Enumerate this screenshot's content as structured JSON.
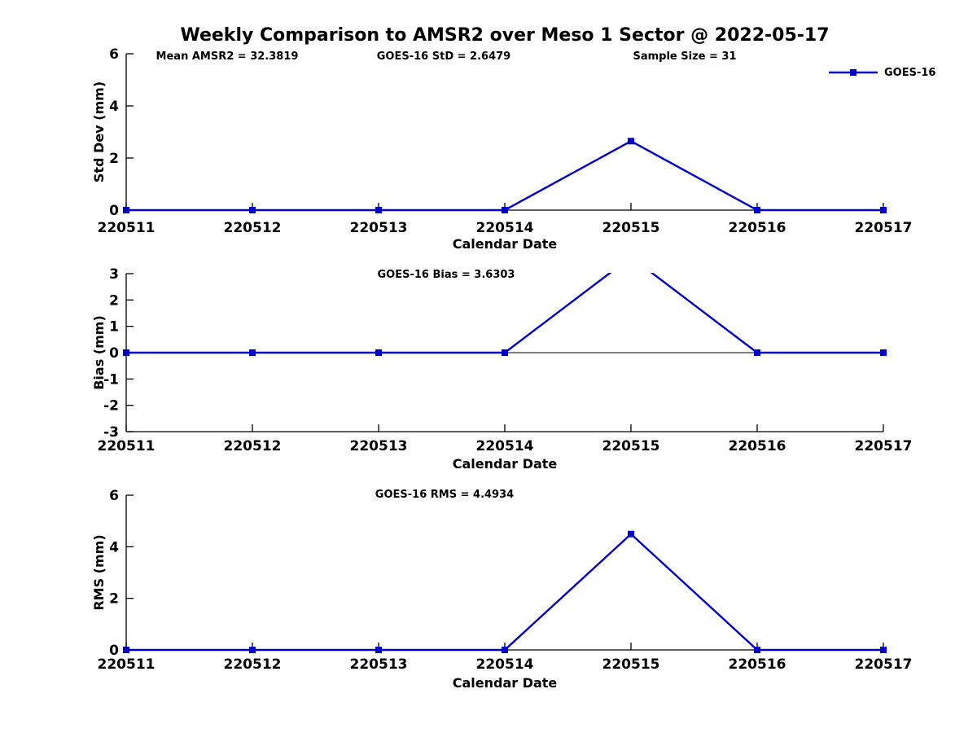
{
  "figure": {
    "title": "Weekly Comparison to AMSR2 over Meso 1 Sector @ 2022-05-17",
    "legend": {
      "label": "GOES-16",
      "color": "#0000CD",
      "marker": "square",
      "position": "top-right"
    }
  },
  "chart_data": [
    {
      "type": "line",
      "title": "",
      "xlabel": "Calendar Date",
      "ylabel": "Std Dev (mm)",
      "categories": [
        "220511",
        "220512",
        "220513",
        "220514",
        "220515",
        "220516",
        "220517"
      ],
      "ylim": [
        0,
        6
      ],
      "yticks": [
        0,
        2,
        4,
        6
      ],
      "grid": false,
      "zero_line": false,
      "annotations": [
        {
          "text": "Mean AMSR2 = 32.3819"
        },
        {
          "text": "GOES-16 StD = 2.6479"
        },
        {
          "text": "Sample Size = 31"
        }
      ],
      "series": [
        {
          "name": "GOES-16",
          "color": "#0000CD",
          "marker": "square",
          "values": [
            0,
            0,
            0,
            0,
            2.6479,
            0,
            0
          ]
        }
      ]
    },
    {
      "type": "line",
      "title": "",
      "xlabel": "Calendar Date",
      "ylabel": "Bias (mm)",
      "categories": [
        "220511",
        "220512",
        "220513",
        "220514",
        "220515",
        "220516",
        "220517"
      ],
      "ylim": [
        -3,
        3
      ],
      "yticks": [
        -3,
        -2,
        -1,
        0,
        1,
        2,
        3
      ],
      "grid": false,
      "zero_line": true,
      "annotations": [
        {
          "text": "GOES-16 Bias  = 3.6303"
        }
      ],
      "series": [
        {
          "name": "GOES-16",
          "color": "#0000CD",
          "marker": "square",
          "values": [
            0,
            0,
            0,
            0,
            3.6303,
            0,
            0
          ]
        }
      ]
    },
    {
      "type": "line",
      "title": "",
      "xlabel": "Calendar Date",
      "ylabel": "RMS (mm)",
      "categories": [
        "220511",
        "220512",
        "220513",
        "220514",
        "220515",
        "220516",
        "220517"
      ],
      "ylim": [
        0,
        6
      ],
      "yticks": [
        0,
        2,
        4,
        6
      ],
      "grid": false,
      "zero_line": false,
      "annotations": [
        {
          "text": "GOES-16 RMS = 4.4934"
        }
      ],
      "series": [
        {
          "name": "GOES-16",
          "color": "#0000CD",
          "marker": "square",
          "values": [
            0,
            0,
            0,
            0,
            4.4934,
            0,
            0
          ]
        }
      ]
    }
  ]
}
